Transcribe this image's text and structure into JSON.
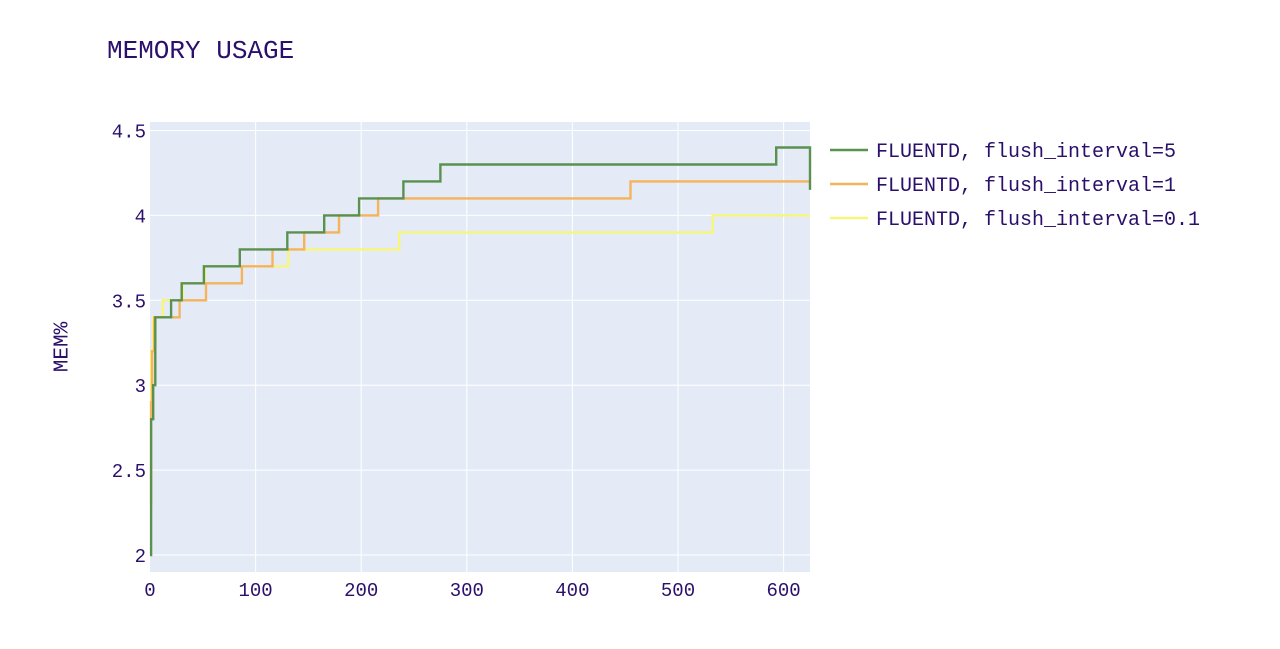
{
  "chart_data": {
    "type": "line",
    "title": "MEMORY USAGE",
    "xlabel": "",
    "ylabel": "MEM%",
    "xlim": [
      0,
      625
    ],
    "ylim": [
      1.9,
      4.55
    ],
    "x_ticks": [
      0,
      100,
      200,
      300,
      400,
      500,
      600
    ],
    "y_ticks": [
      2,
      2.5,
      3,
      3.5,
      4,
      4.5
    ],
    "y_tick_labels": [
      "2",
      "2.5",
      "3",
      "3.5",
      "4",
      "4.5"
    ],
    "grid": true,
    "legend_position": "right",
    "colors": {
      "text": "#2a0f6b",
      "plot_bg": "#e5ebf6",
      "grid": "#ffffff"
    },
    "series": [
      {
        "name": "FLUENTD, flush_interval=5",
        "color": "#5a9150",
        "x": [
          0,
          1,
          3,
          5,
          9,
          20,
          30,
          51,
          85,
          116,
          130,
          165,
          198,
          240,
          275,
          593,
          625,
          625
        ],
        "y": [
          2.0,
          2.8,
          3.0,
          3.4,
          3.4,
          3.5,
          3.6,
          3.7,
          3.8,
          3.8,
          3.9,
          4.0,
          4.1,
          4.2,
          4.3,
          4.4,
          4.4,
          4.15
        ]
      },
      {
        "name": "FLUENTD, flush_interval=1",
        "color": "#f5b35c",
        "x": [
          0,
          1,
          2,
          4,
          28,
          53,
          87,
          116,
          146,
          179,
          216,
          455,
          625
        ],
        "y": [
          2.3,
          2.9,
          3.2,
          3.4,
          3.5,
          3.6,
          3.7,
          3.8,
          3.9,
          4.0,
          4.1,
          4.2,
          4.2
        ]
      },
      {
        "name": "FLUENTD, flush_interval=0.1",
        "color": "#f7f57a",
        "x": [
          0,
          1,
          3,
          12,
          31,
          52,
          131,
          236,
          533,
          625
        ],
        "y": [
          2.8,
          3.2,
          3.4,
          3.5,
          3.6,
          3.7,
          3.8,
          3.9,
          4.0,
          4.0
        ]
      }
    ]
  }
}
